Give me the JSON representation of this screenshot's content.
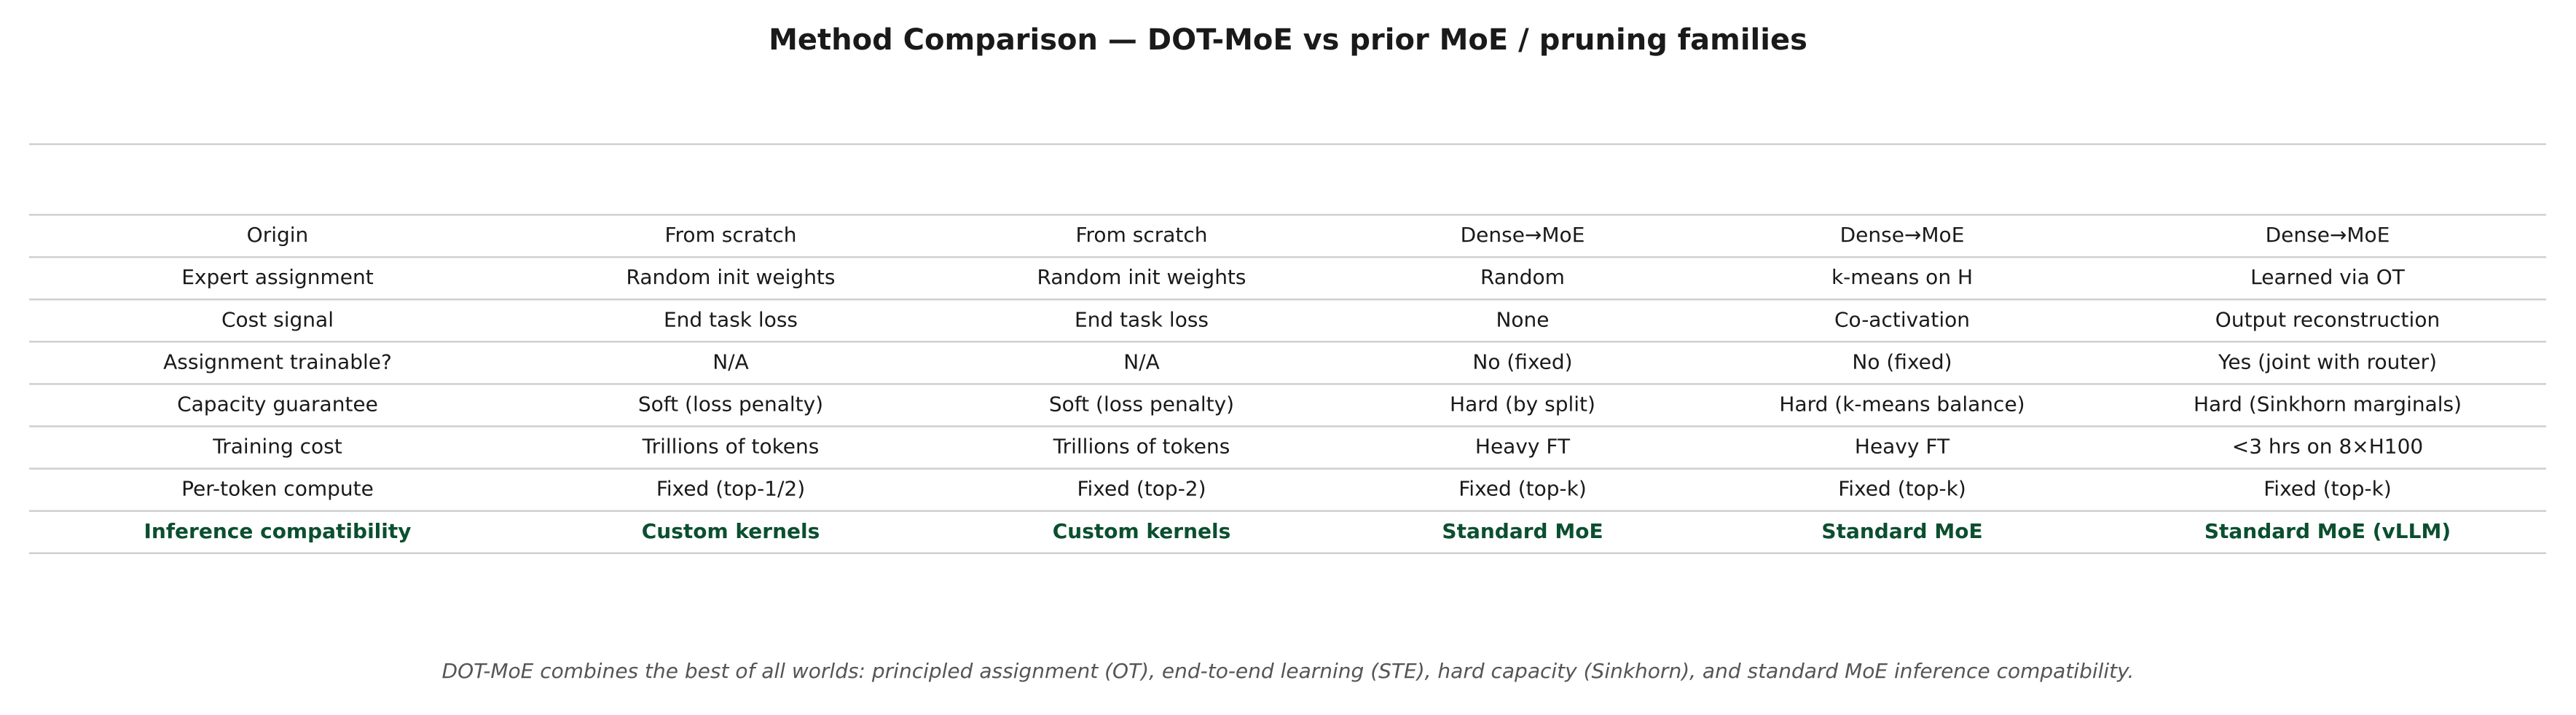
{
  "title": "Method Comparison — DOT-MoE vs prior MoE / pruning families",
  "table": {
    "rows": [
      [
        "Origin",
        "From scratch",
        "From scratch",
        "Dense→MoE",
        "Dense→MoE",
        "Dense→MoE"
      ],
      [
        "Expert assignment",
        "Random init weights",
        "Random init weights",
        "Random",
        "k-means on H",
        "Learned via OT"
      ],
      [
        "Cost signal",
        "End task loss",
        "End task loss",
        "None",
        "Co-activation",
        "Output reconstruction"
      ],
      [
        "Assignment trainable?",
        "N/A",
        "N/A",
        "No (fixed)",
        "No (fixed)",
        "Yes (joint with router)"
      ],
      [
        "Capacity guarantee",
        "Soft (loss penalty)",
        "Soft (loss penalty)",
        "Hard (by split)",
        "Hard (k-means balance)",
        "Hard (Sinkhorn marginals)"
      ],
      [
        "Training cost",
        "Trillions of tokens",
        "Trillions of tokens",
        "Heavy FT",
        "Heavy FT",
        "<3 hrs on 8×H100"
      ],
      [
        "Per-token compute",
        "Fixed (top-1/2)",
        "Fixed (top-2)",
        "Fixed (top-k)",
        "Fixed (top-k)",
        "Fixed (top-k)"
      ],
      [
        "Inference compatibility",
        "Custom kernels",
        "Custom kernels",
        "Standard MoE",
        "Standard MoE",
        "Standard MoE (vLLM)"
      ]
    ]
  },
  "footnote": "DOT-MoE combines the best of all worlds: principled assignment (OT), end-to-end learning (STE), hard capacity (Sinkhorn), and standard MoE inference compatibility."
}
